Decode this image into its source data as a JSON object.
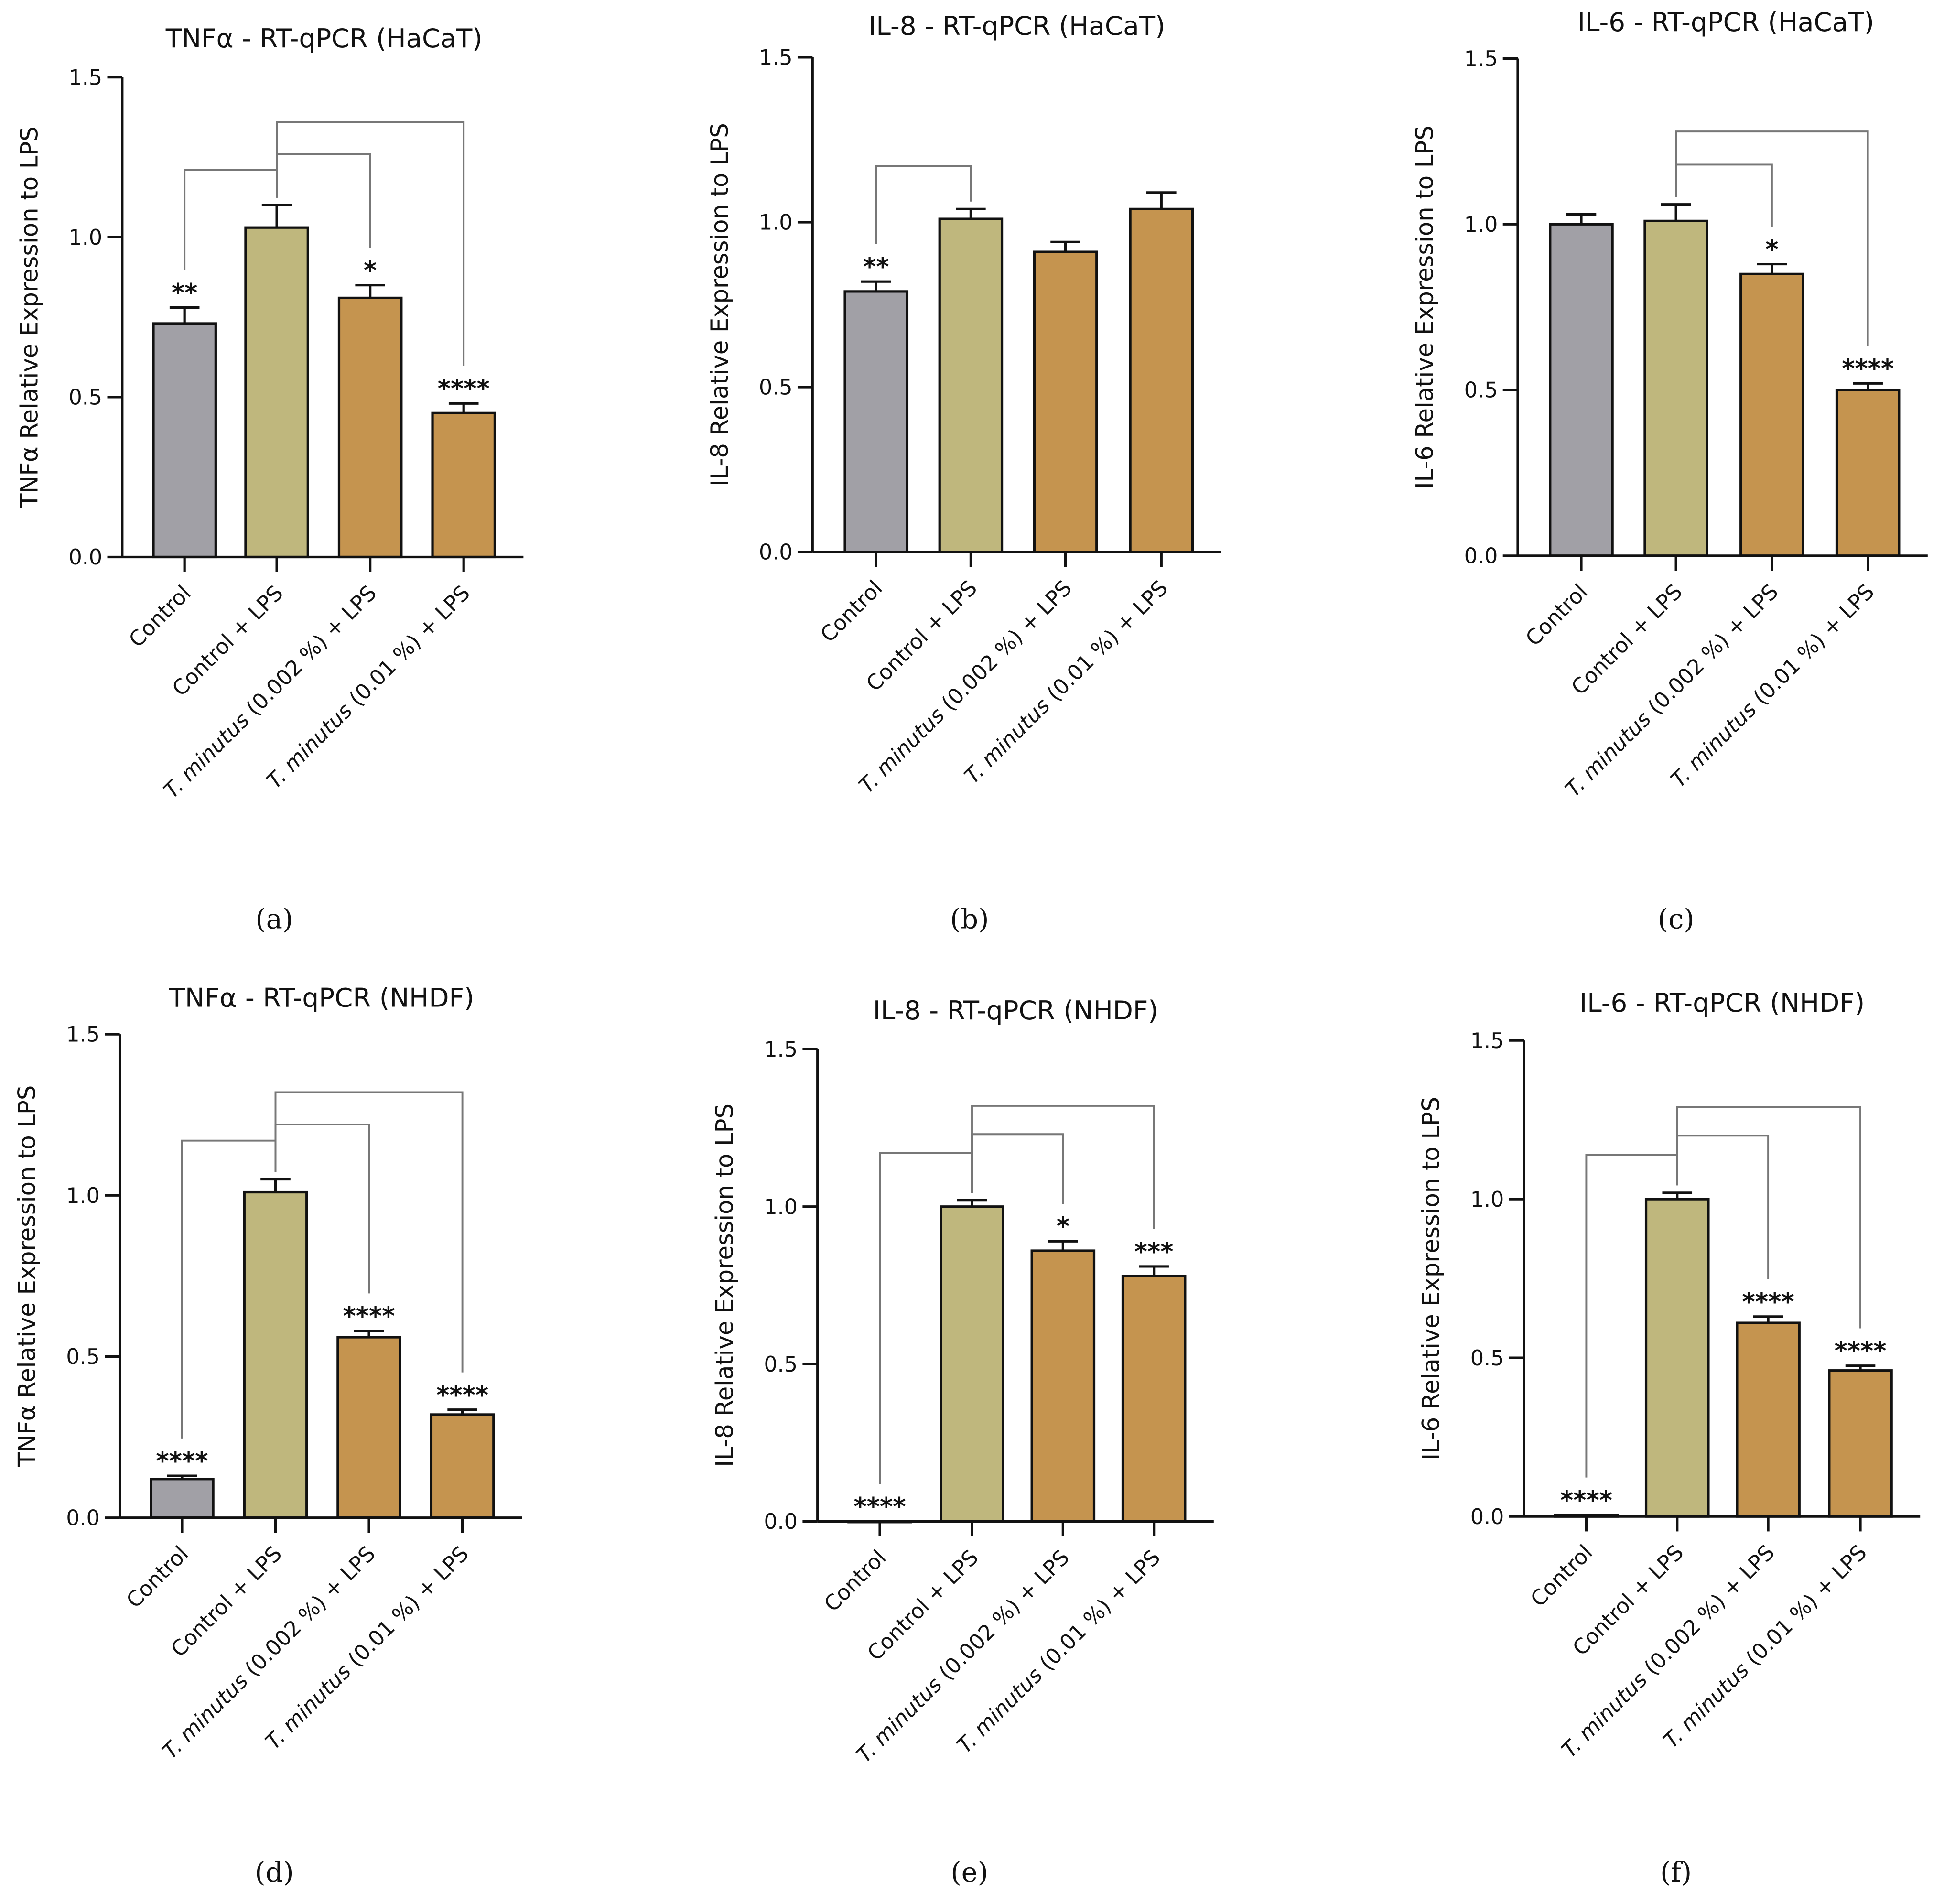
{
  "colors": {
    "gray": "#a1a0a6",
    "olive": "#bfb77d",
    "orange": "#c5944f",
    "axis": "#111111",
    "bracket": "#777777"
  },
  "categories": [
    "Control",
    "Control + LPS",
    "T. minutus (0.002 %) + LPS",
    "T. minutus (0.01 %) + LPS"
  ],
  "italic_prefix": "T. minutus",
  "chart_data": [
    {
      "panel": "(a)",
      "type": "bar",
      "title": "TNFα - RT-qPCR (HaCaT)",
      "ylabel": "TNFα Relative Expression to LPS",
      "ylim": [
        0,
        1.5
      ],
      "yticks": [
        "0.0",
        "0.5",
        "1.0",
        "1.5"
      ],
      "values": [
        0.73,
        1.03,
        0.81,
        0.45
      ],
      "errors": [
        0.05,
        0.07,
        0.04,
        0.03
      ],
      "significance": [
        "**",
        "",
        "*",
        "****"
      ],
      "brackets": [
        {
          "from": 1,
          "to": 0,
          "level": 1.21
        },
        {
          "from": 1,
          "to": 2,
          "level": 1.26
        },
        {
          "from": 1,
          "to": 3,
          "level": 1.36
        }
      ]
    },
    {
      "panel": "(b)",
      "type": "bar",
      "title": "IL-8 - RT-qPCR (HaCaT)",
      "ylabel": "IL-8 Relative Expression to LPS",
      "ylim": [
        0,
        1.5
      ],
      "yticks": [
        "0.0",
        "0.5",
        "1.0",
        "1.5"
      ],
      "values": [
        0.79,
        1.01,
        0.91,
        1.04
      ],
      "errors": [
        0.03,
        0.03,
        0.03,
        0.05
      ],
      "significance": [
        "**",
        "",
        "",
        ""
      ],
      "brackets": [
        {
          "from": 1,
          "to": 0,
          "level": 1.17
        }
      ]
    },
    {
      "panel": "(c)",
      "type": "bar",
      "title": "IL-6 - RT-qPCR (HaCaT)",
      "ylabel": "IL-6 Relative Expression to LPS",
      "ylim": [
        0,
        1.5
      ],
      "yticks": [
        "0.0",
        "0.5",
        "1.0",
        "1.5"
      ],
      "values": [
        1.0,
        1.01,
        0.85,
        0.5
      ],
      "errors": [
        0.03,
        0.05,
        0.03,
        0.02
      ],
      "significance": [
        "",
        "",
        "*",
        "****"
      ],
      "brackets": [
        {
          "from": 1,
          "to": 2,
          "level": 1.18
        },
        {
          "from": 1,
          "to": 3,
          "level": 1.28
        }
      ]
    },
    {
      "panel": "(d)",
      "type": "bar",
      "title": "TNFα - RT-qPCR (NHDF)",
      "ylabel": "TNFα Relative Expression to LPS",
      "ylim": [
        0,
        1.5
      ],
      "yticks": [
        "0.0",
        "0.5",
        "1.0",
        "1.5"
      ],
      "values": [
        0.12,
        1.01,
        0.56,
        0.32
      ],
      "errors": [
        0.01,
        0.04,
        0.02,
        0.015
      ],
      "significance": [
        "****",
        "",
        "****",
        "****"
      ],
      "brackets": [
        {
          "from": 1,
          "to": 0,
          "level": 1.17
        },
        {
          "from": 1,
          "to": 2,
          "level": 1.22
        },
        {
          "from": 1,
          "to": 3,
          "level": 1.32
        }
      ]
    },
    {
      "panel": "(e)",
      "type": "bar",
      "title": "IL-8 - RT-qPCR (NHDF)",
      "ylabel": "IL-8 Relative Expression to LPS",
      "ylim": [
        0,
        1.5
      ],
      "yticks": [
        "0.0",
        "0.5",
        "1.0",
        "1.5"
      ],
      "values": [
        0.0,
        1.0,
        0.86,
        0.78
      ],
      "errors": [
        0.0,
        0.02,
        0.03,
        0.03
      ],
      "significance": [
        "****",
        "",
        "*",
        "***"
      ],
      "brackets": [
        {
          "from": 1,
          "to": 0,
          "level": 1.17
        },
        {
          "from": 1,
          "to": 2,
          "level": 1.23
        },
        {
          "from": 1,
          "to": 3,
          "level": 1.32
        }
      ]
    },
    {
      "panel": "(f)",
      "type": "bar",
      "title": "IL-6 - RT-qPCR (NHDF)",
      "ylabel": "IL-6 Relative Expression to LPS",
      "ylim": [
        0,
        1.5
      ],
      "yticks": [
        "0.0",
        "0.5",
        "1.0",
        "1.5"
      ],
      "values": [
        0.005,
        1.0,
        0.61,
        0.46
      ],
      "errors": [
        0.0,
        0.02,
        0.02,
        0.015
      ],
      "significance": [
        "****",
        "",
        "****",
        "****"
      ],
      "brackets": [
        {
          "from": 1,
          "to": 0,
          "level": 1.14
        },
        {
          "from": 1,
          "to": 2,
          "level": 1.2
        },
        {
          "from": 1,
          "to": 3,
          "level": 1.29
        }
      ]
    }
  ]
}
